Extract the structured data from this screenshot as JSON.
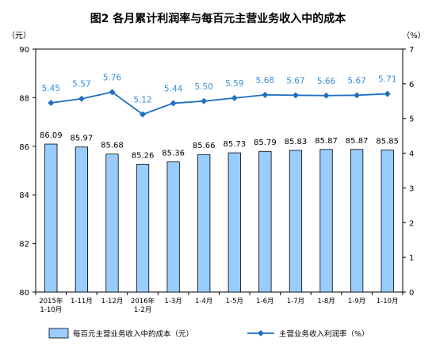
{
  "chart_data": {
    "type": "bar+line",
    "title": "图2  各月累计利润率与每百元主营业务收入中的成本",
    "y_left_unit": "（元）",
    "y_right_unit": "（%）",
    "y_left_range": [
      80,
      90
    ],
    "y_left_ticks": [
      "80",
      "82",
      "84",
      "86",
      "88",
      "90"
    ],
    "y_right_range": [
      0,
      7
    ],
    "y_right_ticks": [
      "0",
      "1",
      "2",
      "3",
      "4",
      "5",
      "6",
      "7"
    ],
    "categories": [
      [
        "2015年",
        "1-10月"
      ],
      [
        "1-11月"
      ],
      [
        "1-12月"
      ],
      [
        "2016年",
        "1-2月"
      ],
      [
        "1-3月"
      ],
      [
        "1-4月"
      ],
      [
        "1-5月"
      ],
      [
        "1-6月"
      ],
      [
        "1-7月"
      ],
      [
        "1-8月"
      ],
      [
        "1-9月"
      ],
      [
        "1-10月"
      ]
    ],
    "series": [
      {
        "name": "每百元主营业务收入中的成本（元）",
        "type": "bar",
        "axis": "left",
        "color": "#99ccff",
        "values": [
          86.09,
          85.97,
          85.68,
          85.26,
          85.36,
          85.66,
          85.73,
          85.79,
          85.83,
          85.87,
          85.87,
          85.85
        ]
      },
      {
        "name": "主营业务收入利润率（%）",
        "type": "line",
        "axis": "right",
        "color": "#1f6fbf",
        "label_color": "#3a8fd8",
        "values": [
          5.45,
          5.57,
          5.76,
          5.12,
          5.44,
          5.5,
          5.59,
          5.68,
          5.67,
          5.66,
          5.67,
          5.71
        ]
      }
    ],
    "legend_position": "bottom",
    "grid": false
  }
}
